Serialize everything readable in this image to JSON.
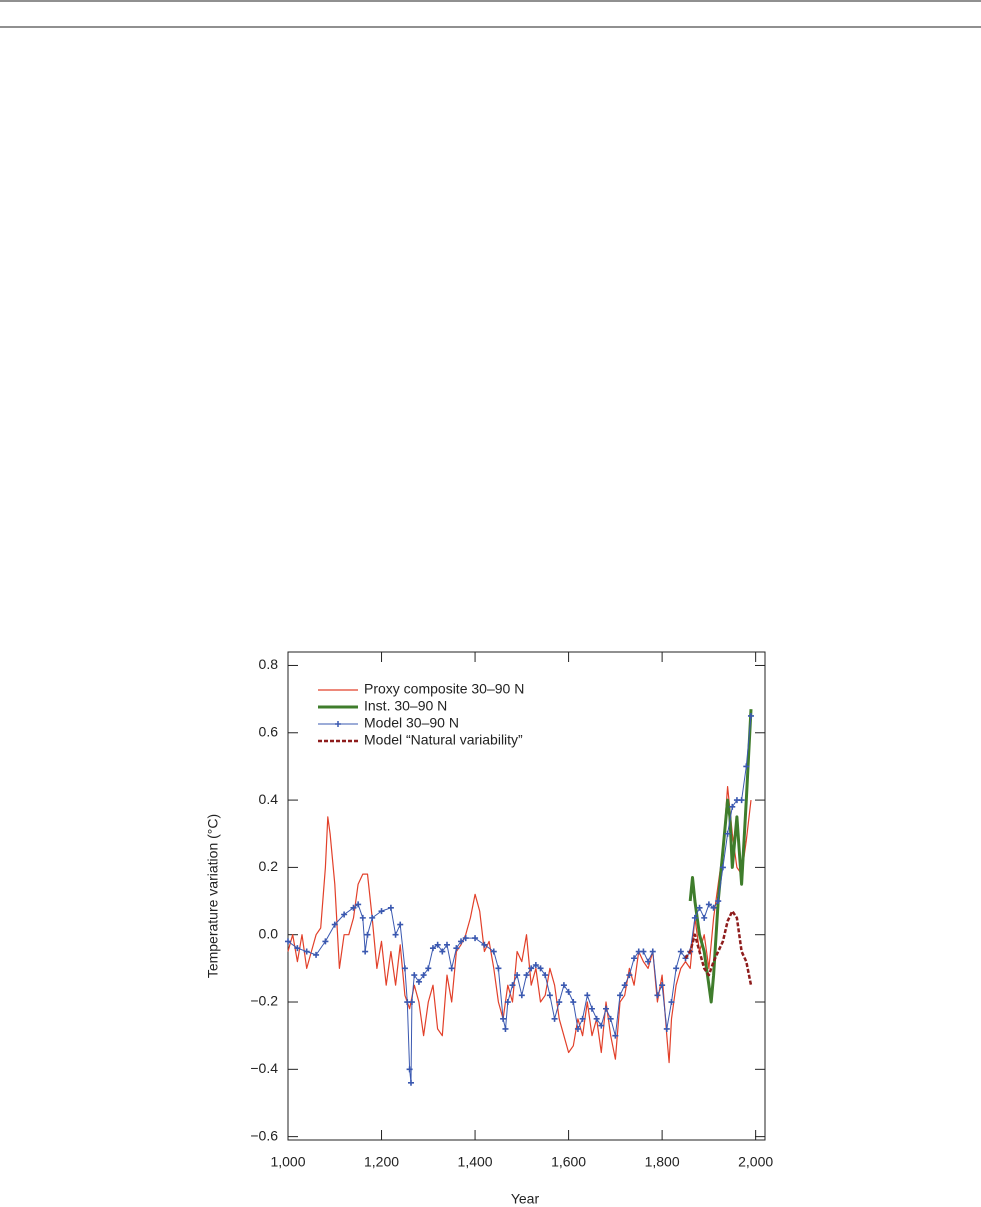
{
  "chart_data": {
    "type": "line",
    "xlabel": "Year",
    "ylabel": "Temperature variation (°C)",
    "xlim": [
      1000,
      2020
    ],
    "ylim": [
      -0.61,
      0.84
    ],
    "xticks": [
      {
        "value": 1000,
        "label": "1,000"
      },
      {
        "value": 1200,
        "label": "1,200"
      },
      {
        "value": 1400,
        "label": "1,400"
      },
      {
        "value": 1600,
        "label": "1,600"
      },
      {
        "value": 1800,
        "label": "1,800"
      },
      {
        "value": 2000,
        "label": "2,000"
      }
    ],
    "yticks": [
      {
        "value": -0.6,
        "label": "−0.6"
      },
      {
        "value": -0.4,
        "label": "−0.4"
      },
      {
        "value": -0.2,
        "label": "−0.2"
      },
      {
        "value": 0,
        "label": "0.0"
      },
      0.2,
      0.4,
      0.6,
      0.8
    ],
    "legend": "upper-left",
    "series": [
      {
        "name": "Proxy composite 30–90 N",
        "color": "#e2402a",
        "style": "solid",
        "width": 1.2,
        "x": [
          1000,
          1010,
          1020,
          1030,
          1040,
          1050,
          1060,
          1070,
          1080,
          1085,
          1090,
          1100,
          1110,
          1120,
          1130,
          1140,
          1150,
          1160,
          1170,
          1180,
          1190,
          1200,
          1210,
          1220,
          1230,
          1240,
          1250,
          1260,
          1270,
          1280,
          1290,
          1300,
          1310,
          1320,
          1330,
          1340,
          1350,
          1360,
          1370,
          1380,
          1390,
          1400,
          1410,
          1420,
          1430,
          1440,
          1450,
          1460,
          1470,
          1480,
          1490,
          1500,
          1510,
          1520,
          1530,
          1540,
          1550,
          1560,
          1570,
          1580,
          1590,
          1600,
          1610,
          1620,
          1630,
          1640,
          1650,
          1660,
          1670,
          1680,
          1690,
          1700,
          1710,
          1720,
          1730,
          1740,
          1750,
          1760,
          1770,
          1780,
          1790,
          1800,
          1810,
          1815,
          1820,
          1830,
          1840,
          1850,
          1860,
          1870,
          1880,
          1890,
          1900,
          1910,
          1920,
          1930,
          1940,
          1950,
          1960,
          1970,
          1980,
          1990
        ],
        "values": [
          -0.05,
          0.0,
          -0.08,
          0.0,
          -0.1,
          -0.05,
          0.0,
          0.02,
          0.2,
          0.35,
          0.3,
          0.15,
          -0.1,
          0.0,
          0.0,
          0.05,
          0.15,
          0.18,
          0.18,
          0.05,
          -0.1,
          -0.02,
          -0.15,
          -0.05,
          -0.15,
          -0.03,
          -0.18,
          -0.22,
          -0.15,
          -0.2,
          -0.3,
          -0.2,
          -0.15,
          -0.28,
          -0.3,
          -0.12,
          -0.2,
          -0.05,
          -0.03,
          0.0,
          0.05,
          0.12,
          0.07,
          -0.05,
          -0.02,
          -0.1,
          -0.2,
          -0.25,
          -0.15,
          -0.2,
          -0.05,
          -0.08,
          0.0,
          -0.15,
          -0.1,
          -0.2,
          -0.18,
          -0.1,
          -0.15,
          -0.25,
          -0.3,
          -0.35,
          -0.33,
          -0.25,
          -0.3,
          -0.2,
          -0.3,
          -0.25,
          -0.35,
          -0.2,
          -0.3,
          -0.37,
          -0.2,
          -0.18,
          -0.1,
          -0.15,
          -0.05,
          -0.08,
          -0.1,
          -0.05,
          -0.2,
          -0.12,
          -0.3,
          -0.38,
          -0.25,
          -0.15,
          -0.1,
          -0.08,
          -0.1,
          0.05,
          -0.05,
          0.0,
          -0.1,
          0.05,
          0.15,
          0.25,
          0.44,
          0.3,
          0.2,
          0.18,
          0.28,
          0.4
        ]
      },
      {
        "name": "Inst. 30–90 N",
        "color": "#3f7d2c",
        "style": "solid",
        "width": 3,
        "x": [
          1860,
          1865,
          1870,
          1875,
          1880,
          1890,
          1900,
          1905,
          1910,
          1920,
          1930,
          1940,
          1945,
          1950,
          1960,
          1970,
          1980,
          1990
        ],
        "values": [
          0.1,
          0.17,
          0.1,
          0.05,
          0.0,
          -0.05,
          -0.15,
          -0.2,
          -0.12,
          0.1,
          0.25,
          0.4,
          0.35,
          0.2,
          0.35,
          0.15,
          0.4,
          0.67
        ]
      },
      {
        "name": "Model 30–90 N",
        "color": "#3a58b0",
        "style": "solid",
        "width": 1,
        "marker": "plus",
        "x": [
          1000,
          1020,
          1040,
          1060,
          1080,
          1100,
          1120,
          1140,
          1150,
          1160,
          1165,
          1170,
          1180,
          1200,
          1220,
          1230,
          1240,
          1250,
          1255,
          1260,
          1263,
          1265,
          1270,
          1280,
          1290,
          1300,
          1310,
          1320,
          1330,
          1340,
          1350,
          1360,
          1370,
          1380,
          1400,
          1420,
          1440,
          1450,
          1460,
          1465,
          1470,
          1480,
          1490,
          1500,
          1510,
          1520,
          1530,
          1540,
          1550,
          1560,
          1570,
          1580,
          1590,
          1600,
          1610,
          1620,
          1630,
          1640,
          1650,
          1660,
          1670,
          1680,
          1690,
          1700,
          1710,
          1720,
          1730,
          1740,
          1750,
          1760,
          1770,
          1780,
          1790,
          1800,
          1810,
          1820,
          1830,
          1840,
          1850,
          1860,
          1870,
          1880,
          1890,
          1900,
          1910,
          1920,
          1930,
          1940,
          1950,
          1960,
          1970,
          1980,
          1990
        ],
        "values": [
          -0.02,
          -0.04,
          -0.05,
          -0.06,
          -0.02,
          0.03,
          0.06,
          0.08,
          0.09,
          0.05,
          -0.05,
          0.0,
          0.05,
          0.07,
          0.08,
          0.0,
          0.03,
          -0.1,
          -0.2,
          -0.4,
          -0.44,
          -0.2,
          -0.12,
          -0.14,
          -0.12,
          -0.1,
          -0.04,
          -0.03,
          -0.05,
          -0.03,
          -0.1,
          -0.04,
          -0.02,
          -0.01,
          -0.01,
          -0.03,
          -0.05,
          -0.1,
          -0.25,
          -0.28,
          -0.2,
          -0.15,
          -0.12,
          -0.18,
          -0.12,
          -0.1,
          -0.09,
          -0.1,
          -0.12,
          -0.18,
          -0.25,
          -0.2,
          -0.15,
          -0.17,
          -0.2,
          -0.28,
          -0.25,
          -0.18,
          -0.22,
          -0.25,
          -0.27,
          -0.22,
          -0.25,
          -0.3,
          -0.18,
          -0.15,
          -0.12,
          -0.07,
          -0.05,
          -0.05,
          -0.08,
          -0.05,
          -0.18,
          -0.15,
          -0.28,
          -0.2,
          -0.1,
          -0.05,
          -0.07,
          -0.05,
          0.05,
          0.08,
          0.05,
          0.09,
          0.08,
          0.1,
          0.2,
          0.3,
          0.38,
          0.4,
          0.4,
          0.5,
          0.65
        ]
      },
      {
        "name": "Model “Natural variability”",
        "color": "#8e1c1c",
        "style": "dashed",
        "width": 2.5,
        "x": [
          1850,
          1860,
          1870,
          1880,
          1890,
          1900,
          1910,
          1920,
          1930,
          1940,
          1950,
          1960,
          1970,
          1980,
          1990
        ],
        "values": [
          -0.07,
          -0.05,
          0.0,
          -0.05,
          -0.1,
          -0.12,
          -0.08,
          -0.05,
          -0.02,
          0.04,
          0.07,
          0.05,
          -0.05,
          -0.08,
          -0.15
        ]
      }
    ]
  }
}
